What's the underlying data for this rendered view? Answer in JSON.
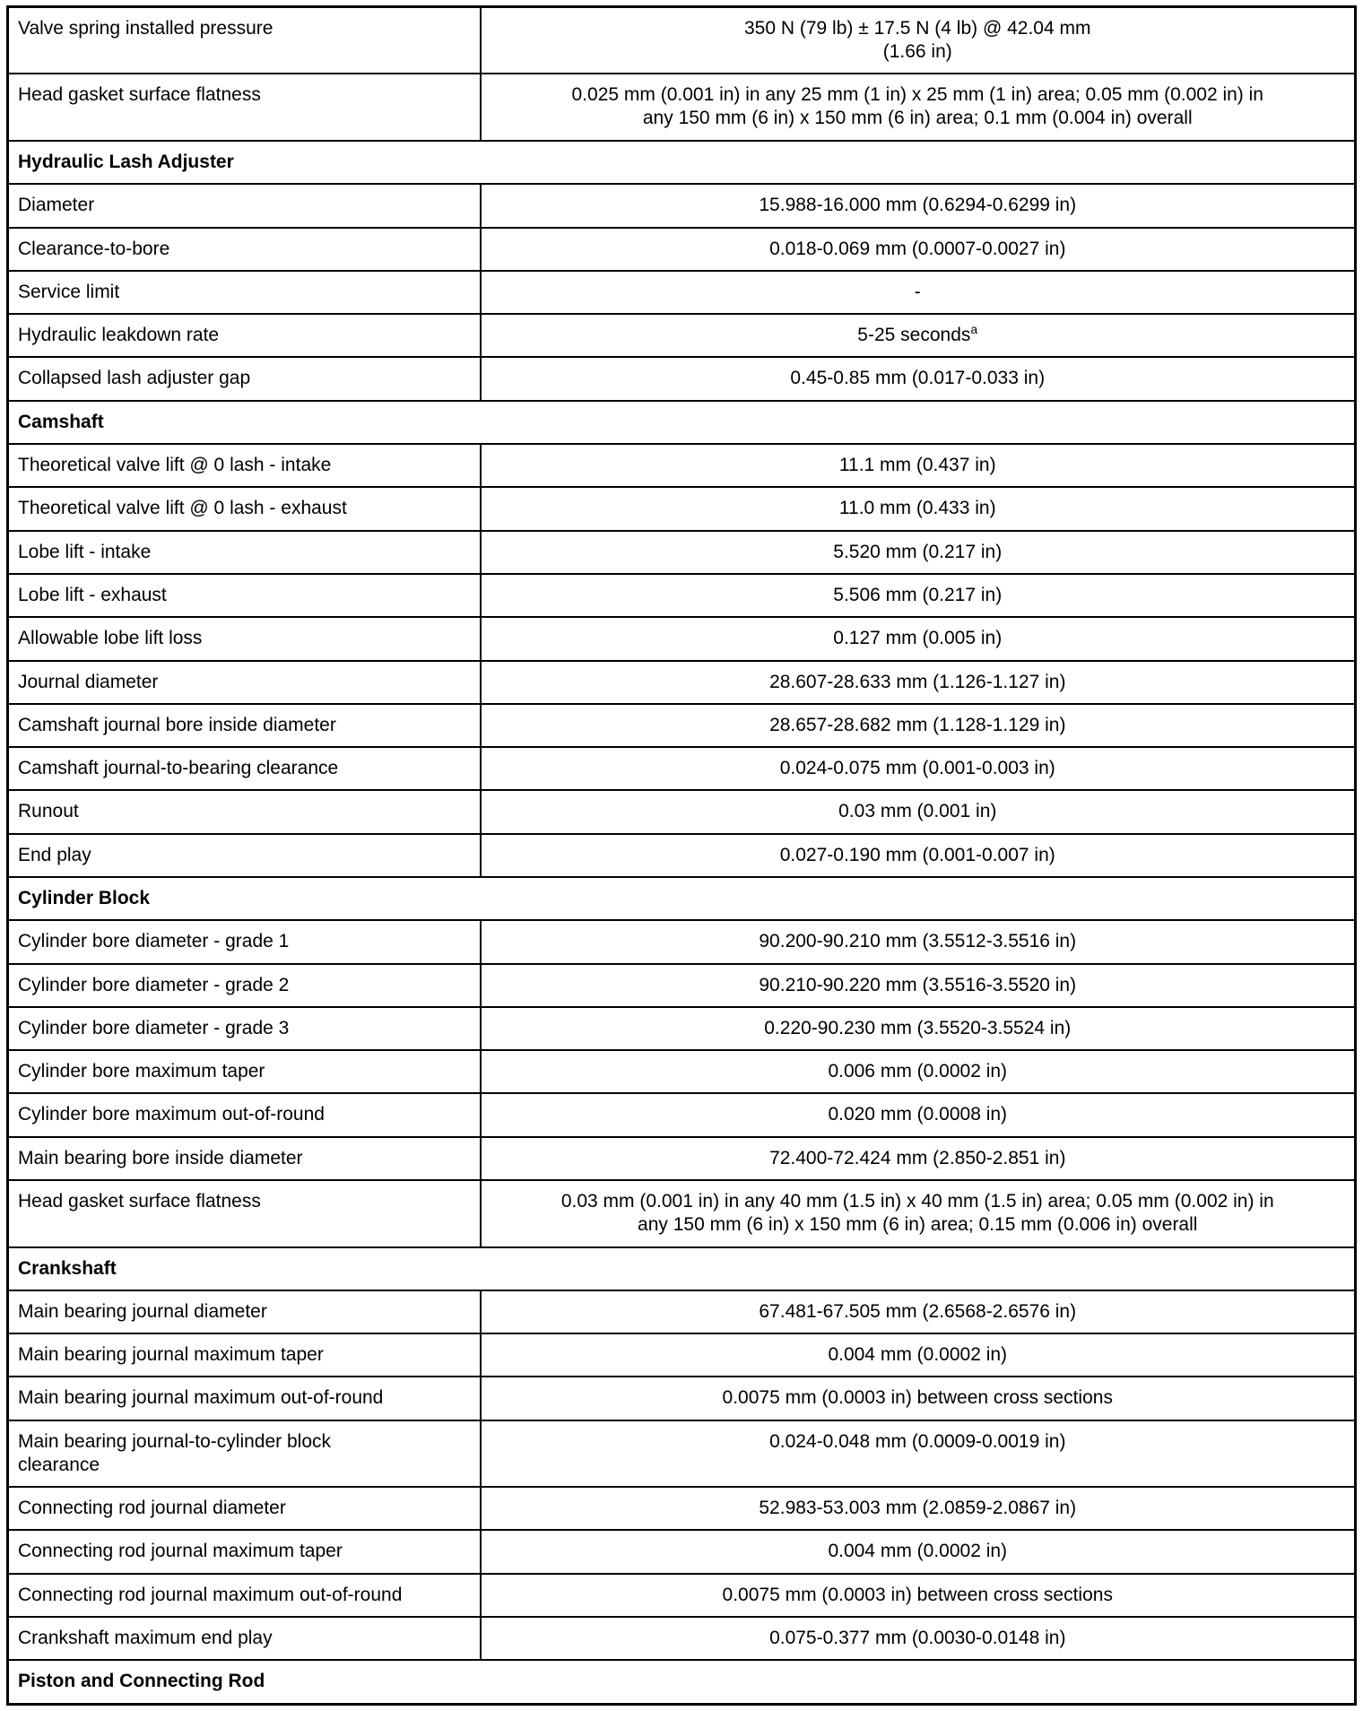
{
  "table": {
    "rows": [
      {
        "type": "data",
        "label": "Valve spring installed pressure",
        "value": "350 N (79 lb) ± 17.5 N (4 lb) @ 42.04 mm\n(1.66 in)"
      },
      {
        "type": "data",
        "label": "Head gasket surface flatness",
        "value": "0.025 mm (0.001 in) in any 25 mm (1 in) x 25 mm (1 in) area; 0.05 mm (0.002 in) in\nany 150 mm (6 in) x 150 mm (6 in) area; 0.1 mm (0.004 in) overall"
      },
      {
        "type": "section",
        "label": "Hydraulic Lash Adjuster"
      },
      {
        "type": "data",
        "label": "Diameter",
        "value": "15.988-16.000 mm (0.6294-0.6299 in)"
      },
      {
        "type": "data",
        "label": "Clearance-to-bore",
        "value": "0.018-0.069 mm (0.0007-0.0027 in)"
      },
      {
        "type": "data",
        "label": "Service limit",
        "value": "-"
      },
      {
        "type": "data",
        "label": "Hydraulic leakdown rate",
        "value": "5-25 seconds",
        "value_sup": "a"
      },
      {
        "type": "data",
        "label": "Collapsed lash adjuster gap",
        "value": "0.45-0.85 mm (0.017-0.033 in)"
      },
      {
        "type": "section",
        "label": "Camshaft"
      },
      {
        "type": "data",
        "label": "Theoretical valve lift @ 0 lash - intake",
        "value": "11.1 mm (0.437 in)"
      },
      {
        "type": "data",
        "label": "Theoretical valve lift @ 0 lash - exhaust",
        "value": "11.0 mm (0.433 in)"
      },
      {
        "type": "data",
        "label": "Lobe lift - intake",
        "value": "5.520 mm (0.217 in)"
      },
      {
        "type": "data",
        "label": "Lobe lift - exhaust",
        "value": "5.506 mm (0.217 in)"
      },
      {
        "type": "data",
        "label": "Allowable lobe lift loss",
        "value": "0.127 mm (0.005 in)"
      },
      {
        "type": "data",
        "label": "Journal diameter",
        "value": "28.607-28.633 mm (1.126-1.127 in)"
      },
      {
        "type": "data",
        "label": "Camshaft journal bore inside diameter",
        "value": "28.657-28.682 mm (1.128-1.129 in)"
      },
      {
        "type": "data",
        "label": "Camshaft journal-to-bearing clearance",
        "value": "0.024-0.075 mm (0.001-0.003 in)"
      },
      {
        "type": "data",
        "label": "Runout",
        "value": "0.03 mm (0.001 in)"
      },
      {
        "type": "data",
        "label": "End play",
        "value": "0.027-0.190 mm (0.001-0.007 in)"
      },
      {
        "type": "section",
        "label": "Cylinder Block"
      },
      {
        "type": "data",
        "label": "Cylinder bore diameter - grade 1",
        "value": "90.200-90.210 mm (3.5512-3.5516 in)"
      },
      {
        "type": "data",
        "label": "Cylinder bore diameter - grade 2",
        "value": "90.210-90.220 mm (3.5516-3.5520 in)"
      },
      {
        "type": "data",
        "label": "Cylinder bore diameter - grade 3",
        "value": "0.220-90.230 mm (3.5520-3.5524 in)"
      },
      {
        "type": "data",
        "label": "Cylinder bore maximum taper",
        "value": "0.006 mm (0.0002 in)"
      },
      {
        "type": "data",
        "label": "Cylinder bore maximum out-of-round",
        "value": "0.020 mm (0.0008 in)"
      },
      {
        "type": "data",
        "label": "Main bearing bore inside diameter",
        "value": "72.400-72.424 mm (2.850-2.851 in)"
      },
      {
        "type": "data",
        "label": "Head gasket surface flatness",
        "value": "0.03 mm (0.001 in) in any 40 mm (1.5 in) x 40 mm (1.5 in) area; 0.05 mm (0.002 in) in\nany 150 mm (6 in) x 150 mm (6 in) area; 0.15 mm (0.006 in) overall"
      },
      {
        "type": "section",
        "label": "Crankshaft"
      },
      {
        "type": "data",
        "label": "Main bearing journal diameter",
        "value": "67.481-67.505 mm (2.6568-2.6576 in)"
      },
      {
        "type": "data",
        "label": "Main bearing journal maximum taper",
        "value": "0.004 mm (0.0002 in)"
      },
      {
        "type": "data",
        "label": "Main bearing journal maximum out-of-round",
        "value": "0.0075 mm (0.0003 in) between cross sections"
      },
      {
        "type": "data",
        "label": "Main bearing journal-to-cylinder block\nclearance",
        "value": "0.024-0.048 mm (0.0009-0.0019 in)"
      },
      {
        "type": "data",
        "label": "Connecting rod journal diameter",
        "value": "52.983-53.003 mm (2.0859-2.0867 in)"
      },
      {
        "type": "data",
        "label": "Connecting rod journal maximum taper",
        "value": "0.004 mm (0.0002 in)"
      },
      {
        "type": "data",
        "label": "Connecting rod journal maximum out-of-round",
        "value": "0.0075 mm (0.0003 in) between cross sections"
      },
      {
        "type": "data",
        "label": "Crankshaft maximum end play",
        "value": "0.075-0.377 mm (0.0030-0.0148 in)"
      },
      {
        "type": "section",
        "label": "Piston and Connecting Rod"
      }
    ]
  }
}
